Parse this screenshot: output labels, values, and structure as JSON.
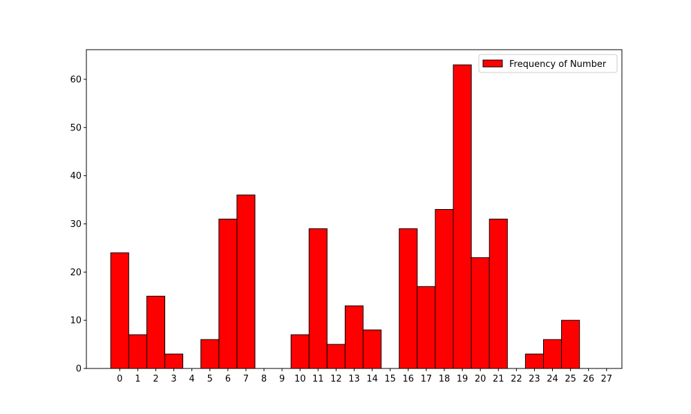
{
  "chart_data": {
    "type": "histogram",
    "bins": [
      -0.5,
      0.5,
      1.5,
      2.5,
      3.5,
      4.5,
      5.5,
      6.5,
      7.5,
      8.5,
      9.5,
      10.5,
      11.5,
      12.5,
      13.5,
      14.5,
      15.5,
      16.5,
      17.5,
      18.5,
      19.5,
      20.5,
      21.5,
      22.5,
      23.5,
      24.5,
      25.5,
      26.5
    ],
    "series": [
      {
        "name": "Frequency of Number",
        "color": "#ff0000",
        "values": [
          24,
          7,
          15,
          3,
          0,
          6,
          31,
          36,
          0,
          0,
          7,
          29,
          5,
          13,
          8,
          0,
          29,
          17,
          33,
          63,
          23,
          31,
          0,
          3,
          6,
          10,
          0
        ]
      }
    ],
    "xlim": [
      -1.85,
      27.85
    ],
    "xticks": [
      0,
      1,
      2,
      3,
      4,
      5,
      6,
      7,
      8,
      9,
      10,
      11,
      12,
      13,
      14,
      15,
      16,
      17,
      18,
      19,
      20,
      21,
      22,
      23,
      24,
      25,
      26,
      27
    ],
    "ylim": [
      0,
      66.15
    ],
    "yticks": [
      0,
      10,
      20,
      30,
      40,
      50,
      60
    ],
    "legend": "upper right"
  }
}
